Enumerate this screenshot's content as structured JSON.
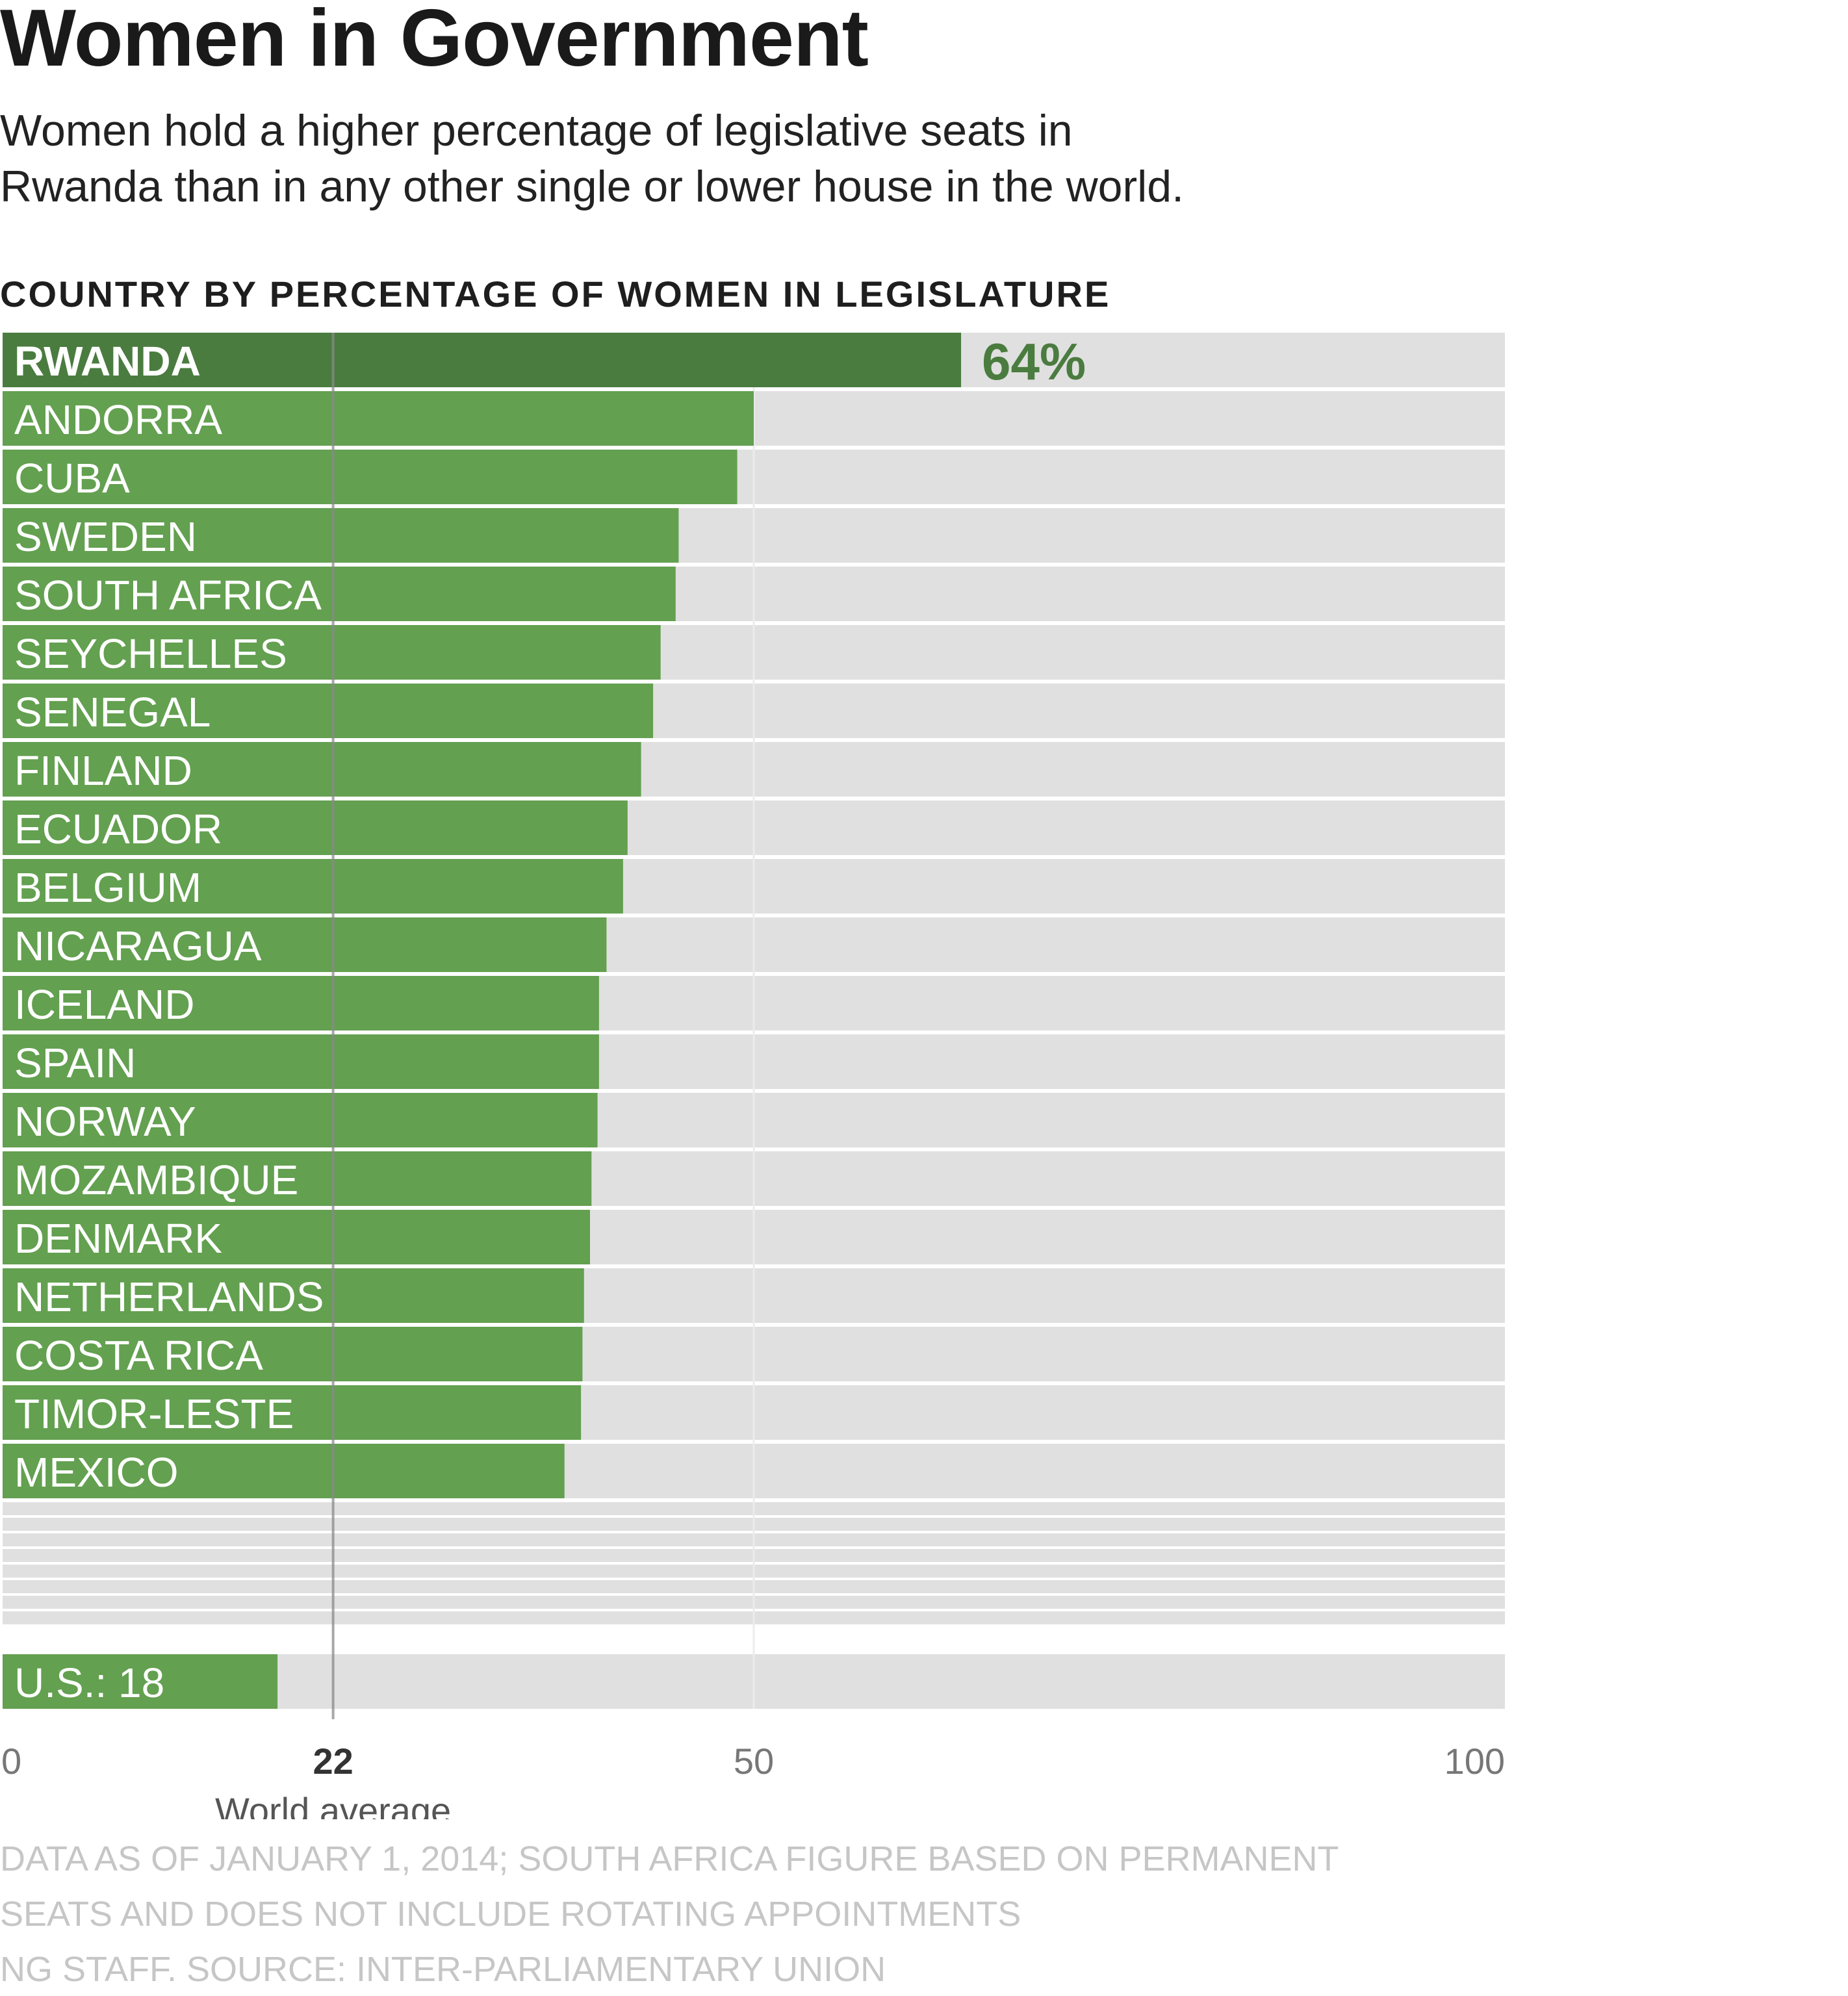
{
  "title": "Women in Government",
  "subtitle_lines": [
    "Women hold a higher percentage of legislative seats in",
    "Rwanda than in any other single or lower house in the world."
  ],
  "chart_data": {
    "type": "bar",
    "orientation": "horizontal",
    "title": "COUNTRY BY PERCENTAGE OF WOMEN IN LEGISLATURE",
    "xlim": [
      0,
      100
    ],
    "x_ticks": [
      {
        "value": 0,
        "label": "0"
      },
      {
        "value": 22,
        "label": "22"
      },
      {
        "value": 50,
        "label": "50"
      },
      {
        "value": 100,
        "label": "100"
      }
    ],
    "reference_line": {
      "value": 22,
      "label": "World average"
    },
    "highlight": {
      "category": "RWANDA",
      "value_label": "64%"
    },
    "categories": [
      "RWANDA",
      "ANDORRA",
      "CUBA",
      "SWEDEN",
      "SOUTH AFRICA",
      "SEYCHELLES",
      "SENEGAL",
      "FINLAND",
      "ECUADOR",
      "BELGIUM",
      "NICARAGUA",
      "ICELAND",
      "SPAIN",
      "NORWAY",
      "MOZAMBIQUE",
      "DENMARK",
      "NETHERLANDS",
      "COSTA RICA",
      "TIMOR-LESTE",
      "MEXICO"
    ],
    "values": [
      63.8,
      50.0,
      48.9,
      45.0,
      44.8,
      43.8,
      43.3,
      42.5,
      41.6,
      41.3,
      40.2,
      39.7,
      39.7,
      39.6,
      39.2,
      39.1,
      38.7,
      38.6,
      38.5,
      37.4
    ],
    "us": {
      "label": "U.S.: 18",
      "value": 18.3
    },
    "colors": {
      "bar": "#63a050",
      "highlight_bar": "#4a7c3f",
      "background": "#e0e0e0",
      "highlight_value": "#4a7c3f",
      "label": "#ffffff",
      "gridline": "#ececec",
      "reference_line": "#8a8a8a"
    }
  },
  "footnotes": [
    "DATA AS OF JANUARY 1, 2014; SOUTH AFRICA FIGURE BASED ON PERMANENT",
    "SEATS AND DOES NOT INCLUDE ROTATING APPOINTMENTS",
    "NG STAFF. SOURCE: INTER-PARLIAMENTARY UNION"
  ]
}
